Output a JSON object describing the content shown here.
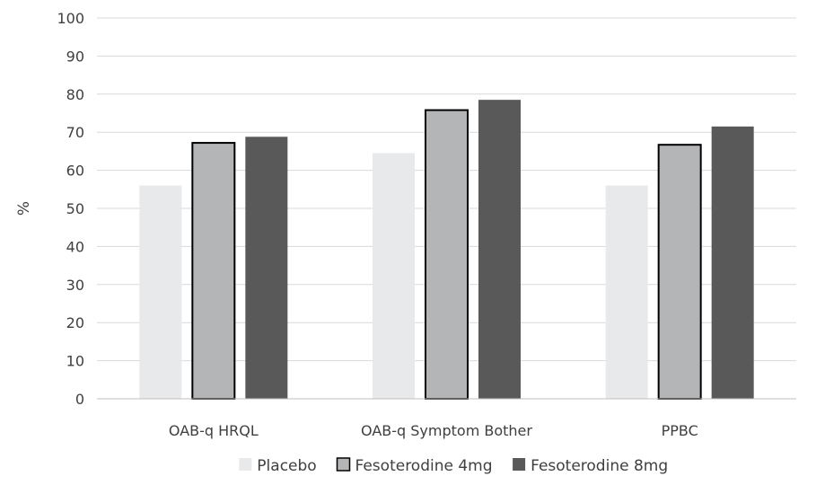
{
  "chart_data": {
    "type": "bar",
    "title": "",
    "xlabel": "",
    "ylabel": "%",
    "ylim": [
      0,
      100
    ],
    "yticks": [
      "0",
      "10",
      "20",
      "30",
      "40",
      "50",
      "60",
      "70",
      "80",
      "90",
      "100"
    ],
    "grid": true,
    "legend_position": "bottom",
    "categories": [
      "OAB-q HRQL",
      "OAB-q Symptom Bother",
      "PPBC"
    ],
    "series": [
      {
        "name": "Placebo",
        "values": [
          56.0,
          64.5,
          56.0
        ],
        "color": "#e8e9ea",
        "outlined": false
      },
      {
        "name": "Fesoterodine 4mg",
        "values": [
          67.2,
          75.8,
          66.7
        ],
        "color": "#b4b5b7",
        "outlined": true
      },
      {
        "name": "Fesoterodine 8mg",
        "values": [
          68.8,
          78.5,
          71.5
        ],
        "color": "#595959",
        "outlined": false
      }
    ]
  }
}
